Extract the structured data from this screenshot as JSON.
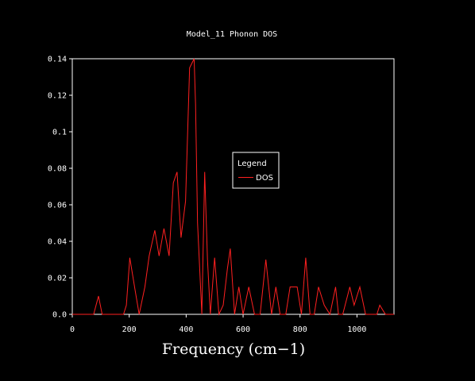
{
  "chart_data": {
    "type": "line",
    "title": "Model_11 Phonon DOS",
    "xlabel": "Frequency (cm−1)",
    "ylabel": "",
    "xlim": [
      0,
      1130
    ],
    "ylim": [
      0,
      0.14
    ],
    "xticks": [
      0,
      200,
      400,
      600,
      800,
      1000
    ],
    "xtick_labels": [
      "0",
      "200",
      "400",
      "600",
      "800",
      "1000"
    ],
    "yticks": [
      0,
      0.02,
      0.04,
      0.06,
      0.08,
      0.1,
      0.12,
      0.14
    ],
    "ytick_labels": [
      "0.0",
      "0.02",
      "0.04",
      "0.06",
      "0.08",
      "0.1",
      "0.12",
      "0.14"
    ],
    "grid": false,
    "legend": {
      "title": "Legend",
      "position": "center-right"
    },
    "series": [
      {
        "name": "DOS",
        "color": "#ff2020",
        "x": [
          0,
          75,
          92,
          105,
          180,
          190,
          202,
          220,
          235,
          255,
          270,
          290,
          305,
          322,
          340,
          355,
          368,
          382,
          398,
          412,
          428,
          433,
          440,
          455,
          465,
          475,
          485,
          500,
          515,
          530,
          545,
          555,
          570,
          585,
          600,
          620,
          640,
          660,
          680,
          690,
          700,
          715,
          730,
          750,
          765,
          790,
          805,
          820,
          835,
          850,
          865,
          885,
          905,
          925,
          935,
          950,
          975,
          990,
          1010,
          1030,
          1050,
          1070,
          1080,
          1100,
          1130
        ],
        "y": [
          0,
          0,
          0.01,
          0,
          0,
          0.005,
          0.031,
          0.014,
          0,
          0.015,
          0.032,
          0.046,
          0.032,
          0.047,
          0.032,
          0.072,
          0.078,
          0.042,
          0.062,
          0.135,
          0.14,
          0.115,
          0.05,
          0,
          0.078,
          0.03,
          0,
          0.031,
          0,
          0.005,
          0.025,
          0.036,
          0,
          0.015,
          0,
          0.015,
          0,
          0,
          0.03,
          0.015,
          0,
          0.015,
          0,
          0,
          0.015,
          0.015,
          0,
          0.031,
          0,
          0,
          0.015,
          0.005,
          0,
          0.015,
          0,
          0,
          0.015,
          0.005,
          0.015,
          0,
          0,
          0,
          0.005,
          0,
          0
        ]
      }
    ]
  }
}
